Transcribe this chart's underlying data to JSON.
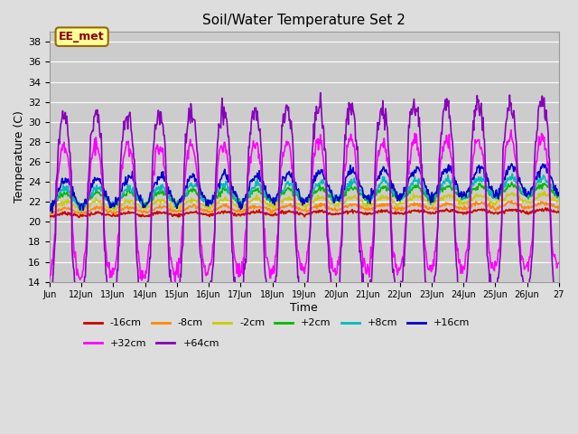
{
  "title": "Soil/Water Temperature Set 2",
  "xlabel": "Time",
  "ylabel": "Temperature (C)",
  "ylim": [
    14,
    39
  ],
  "yticks": [
    14,
    16,
    18,
    20,
    22,
    24,
    26,
    28,
    30,
    32,
    34,
    36,
    38
  ],
  "fig_bg": "#dddddd",
  "plot_bg": "#cccccc",
  "series": [
    {
      "label": "-16cm",
      "color": "#cc0000",
      "linewidth": 1.2,
      "zorder": 3
    },
    {
      "label": "-8cm",
      "color": "#ff8800",
      "linewidth": 1.2,
      "zorder": 3
    },
    {
      "label": "-2cm",
      "color": "#cccc00",
      "linewidth": 1.2,
      "zorder": 3
    },
    {
      "label": "+2cm",
      "color": "#00bb00",
      "linewidth": 1.2,
      "zorder": 3
    },
    {
      "label": "+8cm",
      "color": "#00bbbb",
      "linewidth": 1.2,
      "zorder": 3
    },
    {
      "label": "+16cm",
      "color": "#0000cc",
      "linewidth": 1.2,
      "zorder": 3
    },
    {
      "label": "+32cm",
      "color": "#ff00ff",
      "linewidth": 1.2,
      "zorder": 4
    },
    {
      "label": "+64cm",
      "color": "#8800bb",
      "linewidth": 1.2,
      "zorder": 5
    }
  ],
  "annotation_text": "EE_met",
  "annotation_bg": "#ffff99",
  "annotation_border": "#996600",
  "annotation_text_color": "#880000",
  "xticklabels": [
    "Jun",
    "12Jun",
    "13Jun",
    "14Jun",
    "15Jun",
    "16Jun",
    "17Jun",
    "18Jun",
    "19Jun",
    "20Jun",
    "21Jun",
    "22Jun",
    "23Jun",
    "24Jun",
    "25Jun",
    "26Jun",
    "27"
  ],
  "n_days": 16,
  "n_points_per_day": 48
}
